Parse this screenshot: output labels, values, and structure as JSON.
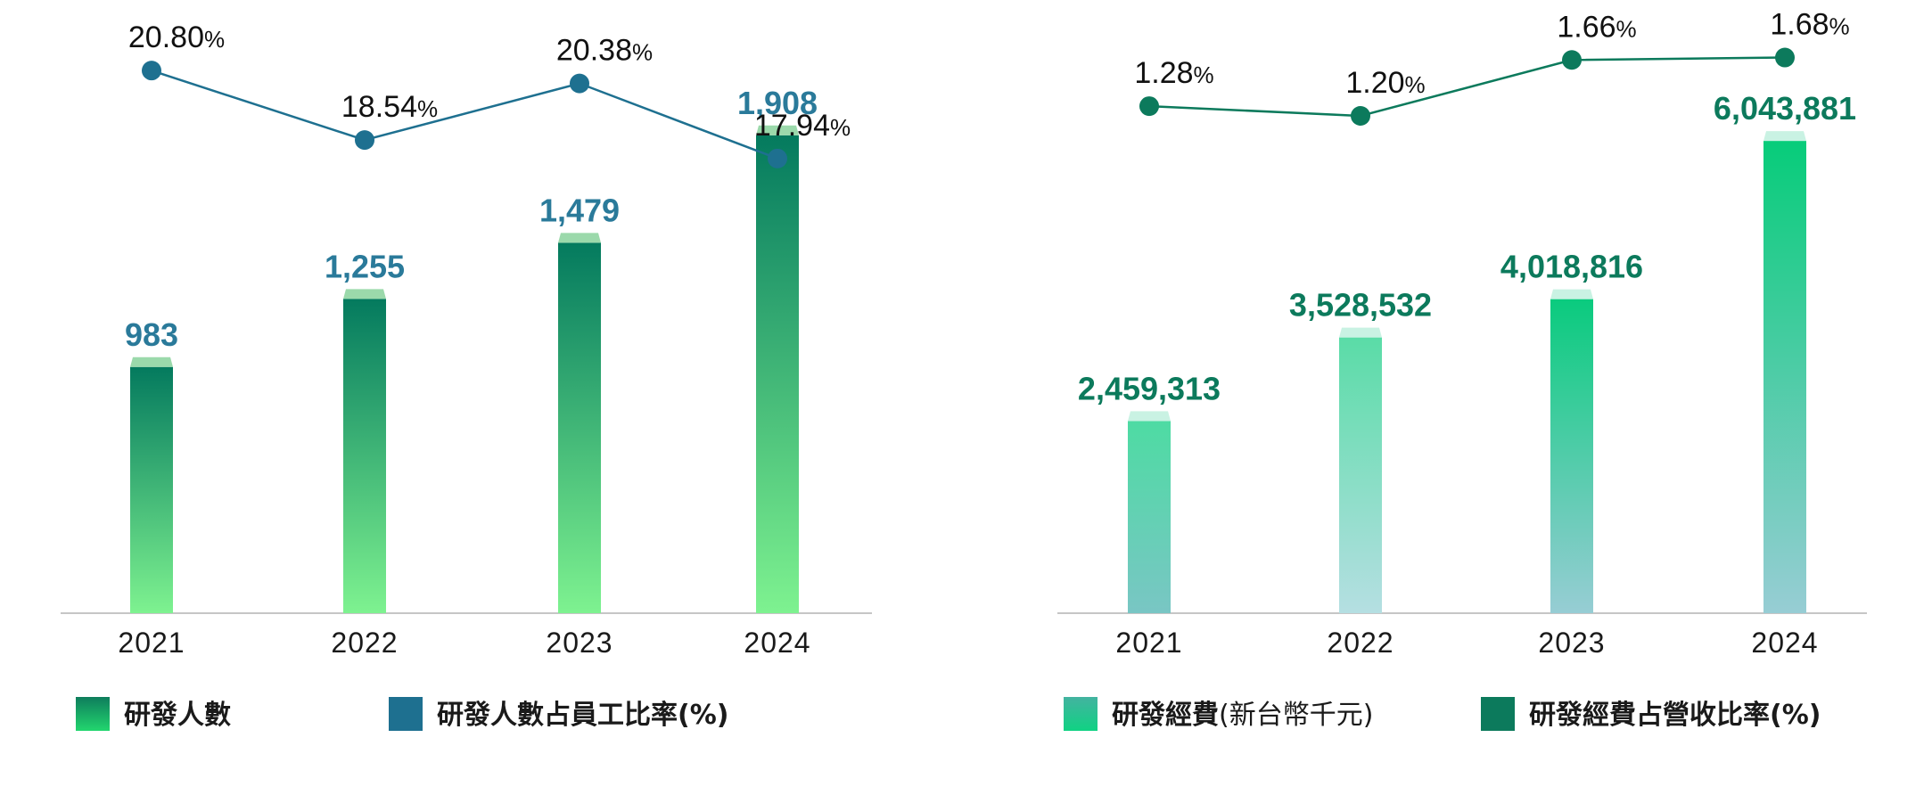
{
  "chart_data": [
    {
      "type": "bar",
      "title": "",
      "categories": [
        "2021",
        "2022",
        "2023",
        "2024"
      ],
      "series": [
        {
          "name": "研發人數",
          "kind": "bar",
          "values": [
            983,
            1255,
            1479,
            1908
          ],
          "labels": [
            "983",
            "1,255",
            "1,479",
            "1,908"
          ]
        },
        {
          "name": "研發人數占員工比率(%)",
          "kind": "line",
          "values": [
            20.8,
            18.54,
            20.38,
            17.94
          ],
          "labels": [
            "20.80",
            "18.54",
            "20.38",
            "17.94"
          ]
        }
      ],
      "legend": [
        {
          "text": "研發人數",
          "suffix": ""
        },
        {
          "text": "研發人數占員工比率(%)",
          "suffix": ""
        }
      ],
      "percent_symbol": "%",
      "colors": {
        "bar_top": "#047a5e",
        "bar_bottom": "#7ef290",
        "cap": "#9bd9ab",
        "line": "#1e7090",
        "value_label": "#2a7a9a",
        "legend_bar_top": "#0e7d5c",
        "legend_bar_bottom": "#22d66e",
        "legend_line": "#1e7090"
      },
      "ylim_bar": [
        0,
        1950
      ],
      "ylim_line": [
        11.5,
        21.5
      ],
      "legend_position": "bottom-left"
    },
    {
      "type": "bar",
      "title": "",
      "categories": [
        "2021",
        "2022",
        "2023",
        "2024"
      ],
      "series": [
        {
          "name": "研發經費(新台幣千元)",
          "kind": "bar",
          "values": [
            2459313,
            3528532,
            4018816,
            6043881
          ],
          "labels": [
            "2,459,313",
            "3,528,532",
            "4,018,816",
            "6,043,881"
          ]
        },
        {
          "name": "研發經費占營收比率(%)",
          "kind": "line",
          "values": [
            1.28,
            1.2,
            1.66,
            1.68
          ],
          "labels": [
            "1.28",
            "1.20",
            "1.66",
            "1.68"
          ]
        }
      ],
      "legend": [
        {
          "text": "研發經費",
          "suffix": "(新台幣千元)"
        },
        {
          "text": "研發經費占營收比率(%)",
          "suffix": ""
        }
      ],
      "percent_symbol": "%",
      "colors": {
        "value_label": "#0c7a5c",
        "line": "#0c7a5c",
        "cap": "#c9f2e3",
        "legend_bar_top": "#43b3a0",
        "legend_bar_bottom": "#10d283",
        "legend_line": "#0c7a5c"
      },
      "bar_gradients": [
        [
          "#4edba3",
          "#79c6c4"
        ],
        [
          "#5adca7",
          "#b5dfe2"
        ],
        [
          "#0acb7e",
          "#97cdd4"
        ],
        [
          "#07cc7a",
          "#97cdd4"
        ]
      ],
      "ylim_bar": [
        0,
        6250000
      ],
      "ylim_line": [
        0.1,
        1.75
      ],
      "legend_position": "bottom-left"
    }
  ]
}
